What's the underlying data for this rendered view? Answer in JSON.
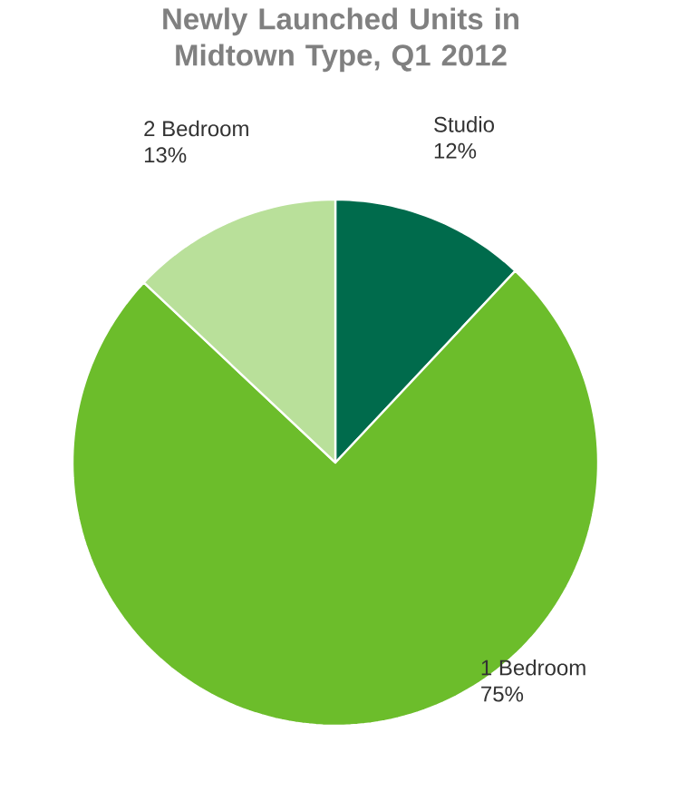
{
  "chart_data": {
    "type": "pie",
    "title": "Newly Launched Units in Midtown Type, Q1 2012",
    "categories": [
      "Studio",
      "1 Bedroom",
      "2 Bedroom"
    ],
    "values": [
      12,
      75,
      13
    ],
    "value_labels": [
      "12%",
      "75%",
      "13%"
    ],
    "colors": [
      "#006b4c",
      "#6cbd2b",
      "#b9e09a"
    ]
  }
}
